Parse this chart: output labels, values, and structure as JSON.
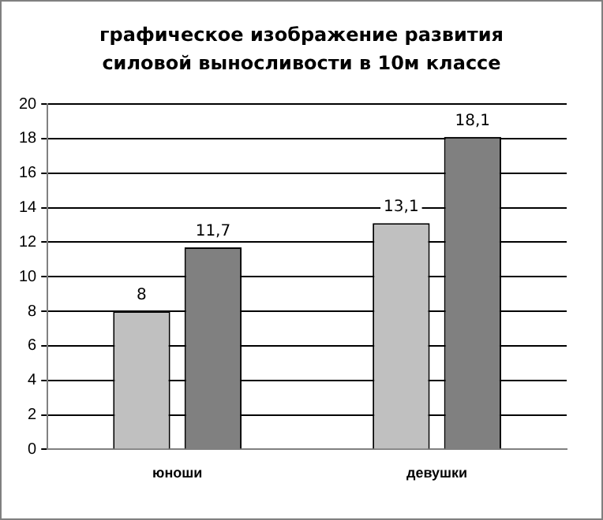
{
  "chart_data": {
    "type": "bar",
    "title": "графическое изображение развития силовой выносливости в 10м классе",
    "categories": [
      "юноши",
      "девушки"
    ],
    "series": [
      {
        "color": "#c0c0c0",
        "values": [
          8,
          13.1
        ],
        "value_labels": [
          "8",
          "13,1"
        ]
      },
      {
        "color": "#808080",
        "values": [
          11.7,
          18.1
        ],
        "value_labels": [
          "11,7",
          "18,1"
        ]
      }
    ],
    "ylim": [
      0,
      20
    ],
    "yticks": [
      0,
      2,
      4,
      6,
      8,
      10,
      12,
      14,
      16,
      18,
      20
    ],
    "grid": "y",
    "legend": false
  }
}
